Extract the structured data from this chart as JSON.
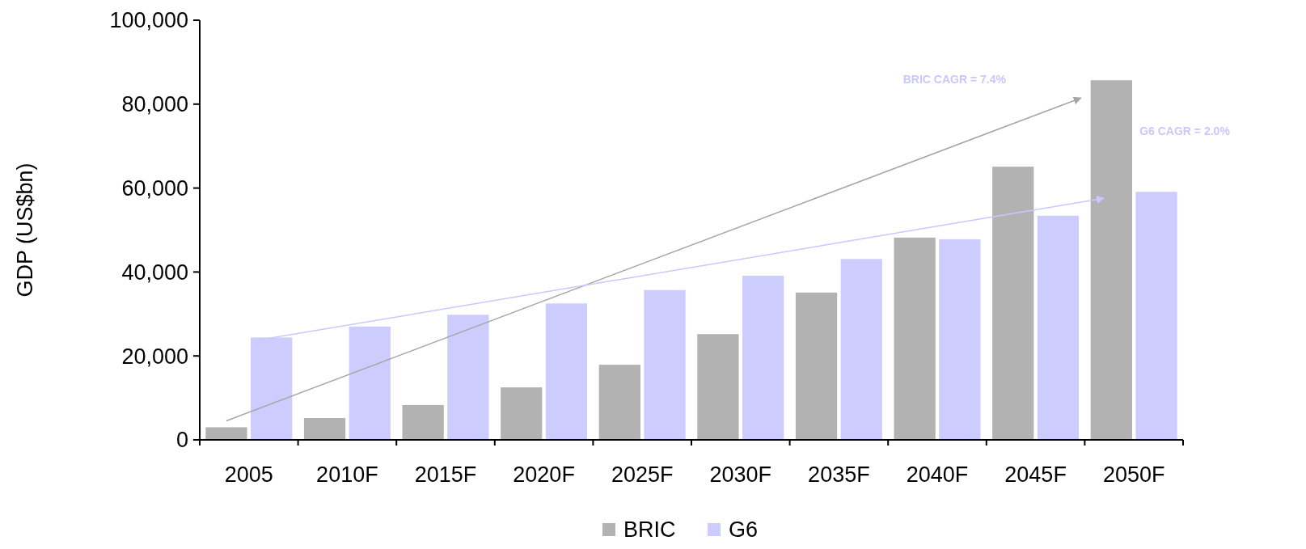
{
  "chart_data": {
    "type": "bar",
    "ylabel": "GDP (US$bn)",
    "categories": [
      "2005",
      "2010F",
      "2015F",
      "2020F",
      "2025F",
      "2030F",
      "2035F",
      "2040F",
      "2045F",
      "2050F"
    ],
    "series": [
      {
        "name": "BRIC",
        "color": "#b2b2b2",
        "values": [
          3000,
          5200,
          8300,
          12500,
          17900,
          25200,
          35100,
          48200,
          65100,
          85700
        ]
      },
      {
        "name": "G6",
        "color": "#ccccff",
        "values": [
          24400,
          27000,
          29800,
          32500,
          35700,
          39100,
          43100,
          47800,
          53400,
          59100
        ]
      }
    ],
    "ylim": [
      0,
      100000
    ],
    "yticks": [
      {
        "value": 0,
        "label": "0"
      },
      {
        "value": 20000,
        "label": "20,000"
      },
      {
        "value": 40000,
        "label": "40,000"
      },
      {
        "value": 60000,
        "label": "60,000"
      },
      {
        "value": 80000,
        "label": "80,000"
      },
      {
        "value": 100000,
        "label": "100,000"
      }
    ],
    "annotations": [
      "BRIC CAGR = 7.4%",
      "G6 CAGR = 2.0%"
    ],
    "grid": false,
    "legend": "bottom"
  }
}
